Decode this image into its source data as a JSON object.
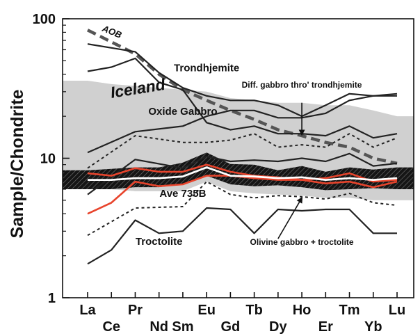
{
  "chart_data": {
    "type": "line",
    "title": "",
    "xlabel": "",
    "ylabel": "Sample/Chondrite",
    "yscale": "log",
    "ylim": [
      1,
      100
    ],
    "yticks": [
      {
        "value": 1,
        "label": "1"
      },
      {
        "value": 10,
        "label": "10"
      },
      {
        "value": 100,
        "label": "100"
      }
    ],
    "categories": [
      "La",
      "Ce",
      "Pr",
      "Nd",
      "Sm",
      "Eu",
      "Gd",
      "Tb",
      "Dy",
      "Ho",
      "Er",
      "Tm",
      "Yb",
      "Lu"
    ],
    "category_rows": [
      "upper",
      "lower",
      "upper",
      "lower",
      "lower",
      "upper",
      "lower",
      "upper",
      "lower",
      "upper",
      "lower",
      "upper",
      "lower",
      "upper"
    ],
    "colors": {
      "dark": "#222222",
      "red": "#e8442c",
      "field": "#d0d0d0",
      "white_band": "#ffffff",
      "black_band": "#151515"
    },
    "fields": [
      {
        "name": "Iceland",
        "upper": [
          36,
          34,
          33,
          32,
          31,
          30,
          27,
          26,
          25,
          25,
          24,
          24,
          22,
          20
        ],
        "lower": [
          6.3,
          6.0,
          5.8,
          5.8,
          5.8,
          6.8,
          5.8,
          5.6,
          5.5,
          5.4,
          5.2,
          5.2,
          5.0,
          5.0
        ]
      },
      {
        "name": "",
        "upper": [
          8.2,
          8.4,
          8.6,
          8.6,
          9.3,
          11.0,
          9.1,
          9.0,
          8.2,
          8.8,
          8.0,
          8.6,
          8.3,
          8.6
        ],
        "lower": [
          6.0,
          6.0,
          6.2,
          6.2,
          6.5,
          7.5,
          6.5,
          6.3,
          6.4,
          6.2,
          5.9,
          6.0,
          6.1,
          6.0
        ]
      }
    ],
    "series": [
      {
        "name": "AOB",
        "style": "dashed",
        "color": "dark",
        "x": [
          "La",
          "Pr",
          "Nd",
          "Sm",
          "Eu",
          "Gd",
          "Tb",
          "Dy",
          "Ho",
          "Er",
          "Tm",
          "Yb",
          "Lu"
        ],
        "values": [
          83,
          56,
          40,
          31,
          26,
          22,
          19,
          16,
          14.5,
          13,
          12,
          10,
          9.2
        ]
      },
      {
        "name": "Trondhjemite",
        "style": "solid",
        "color": "dark",
        "x": [
          "La",
          "Pr",
          "Nd",
          "Sm",
          "Eu",
          "Gd",
          "Tb",
          "Dy",
          "Ho",
          "Er",
          "Tm",
          "Yb",
          "Lu"
        ],
        "values": [
          66,
          58,
          41,
          32,
          28,
          26,
          26,
          24,
          20,
          24,
          29,
          28,
          28
        ]
      },
      {
        "name": "",
        "style": "solid",
        "color": "dark",
        "x": [
          "La",
          "Ce",
          "Pr",
          "Nd",
          "Sm",
          "Eu",
          "Gd",
          "Tb",
          "Dy",
          "Ho",
          "Er",
          "Tm",
          "Yb",
          "Lu"
        ],
        "values": [
          42,
          45,
          52,
          35,
          31,
          18,
          16,
          17,
          15,
          15,
          14.5,
          17,
          14,
          15
        ]
      },
      {
        "name": "",
        "style": "solid",
        "color": "dark",
        "x": [
          "La",
          "Pr",
          "Sm",
          "Eu",
          "Gd",
          "Tb",
          "Dy",
          "Ho",
          "Er",
          "Tm",
          "Yb",
          "Lu"
        ],
        "values": [
          11,
          15.5,
          17,
          20,
          22,
          22,
          19.5,
          19.5,
          21,
          26,
          28,
          29
        ]
      },
      {
        "name": "",
        "style": "dotted",
        "color": "dark",
        "x": [
          "La",
          "Pr",
          "Sm",
          "Eu",
          "Gd",
          "Tb",
          "Dy",
          "Ho",
          "Er",
          "Tm",
          "Yb",
          "Lu"
        ],
        "values": [
          8.5,
          14.5,
          13,
          13,
          13.5,
          15,
          12,
          12.5,
          12,
          15,
          12,
          14
        ]
      },
      {
        "name": "",
        "style": "solid",
        "color": "dark",
        "x": [
          "La",
          "Pr",
          "Sm",
          "Eu",
          "Gd",
          "Tb",
          "Dy",
          "Ho",
          "Er",
          "Tm",
          "Yb",
          "Lu"
        ],
        "values": [
          5.5,
          9.8,
          8.5,
          10.3,
          9.5,
          9.7,
          9.5,
          10,
          9.5,
          10.8,
          8.8,
          9.2
        ]
      },
      {
        "name": "",
        "style": "solid",
        "color": "red",
        "x": [
          "La",
          "Ce",
          "Pr",
          "Nd",
          "Sm",
          "Eu",
          "Gd",
          "Tb",
          "Dy",
          "Ho",
          "Er",
          "Tm",
          "Yb",
          "Lu"
        ],
        "values": [
          7.8,
          7.5,
          8.5,
          8.0,
          8.0,
          9.0,
          8.0,
          7.5,
          7.3,
          7.0,
          7.2,
          7.8,
          6.8,
          7.0
        ]
      },
      {
        "name": "",
        "style": "solid",
        "color": "red",
        "x": [
          "La",
          "Ce",
          "Pr",
          "Nd",
          "Sm",
          "Eu",
          "Gd",
          "Tb",
          "Dy",
          "Ho",
          "Er",
          "Tm",
          "Yb",
          "Lu"
        ],
        "values": [
          4.0,
          4.8,
          6.8,
          6.3,
          6.5,
          7.5,
          7.5,
          7.2,
          7.0,
          7.0,
          6.6,
          6.8,
          6.2,
          6.8
        ]
      },
      {
        "name": "Ave 735B",
        "style": "solid",
        "color": "white_band",
        "x": [
          "La",
          "Ce",
          "Pr",
          "Nd",
          "Sm",
          "Eu",
          "Gd",
          "Tb",
          "Dy",
          "Ho",
          "Er",
          "Tm",
          "Yb",
          "Lu"
        ],
        "values": [
          7.0,
          7.0,
          7.2,
          7.2,
          7.4,
          8.6,
          7.5,
          7.4,
          7.2,
          7.3,
          7.0,
          7.2,
          7.0,
          7.2
        ]
      },
      {
        "name": "",
        "style": "dotted",
        "color": "dark",
        "x": [
          "La",
          "Pr",
          "Sm",
          "Eu",
          "Gd",
          "Tb",
          "Dy",
          "Ho",
          "Er",
          "Tm",
          "Yb",
          "Lu"
        ],
        "values": [
          2.8,
          4.4,
          4.5,
          6.8,
          5.5,
          5.2,
          5.4,
          5.3,
          5.1,
          5.6,
          4.8,
          4.6
        ]
      },
      {
        "name": "Troctolite",
        "style": "solid",
        "color": "dark",
        "x": [
          "La",
          "Ce",
          "Pr",
          "Nd",
          "Sm",
          "Eu",
          "Gd",
          "Tb",
          "Dy",
          "Ho",
          "Er",
          "Tm",
          "Yb",
          "Lu"
        ],
        "values": [
          1.75,
          2.2,
          3.6,
          2.9,
          3.0,
          4.4,
          4.3,
          2.9,
          4.3,
          4.2,
          4.3,
          4.3,
          2.9,
          2.9
        ]
      }
    ],
    "annotations": [
      {
        "text": "AOB",
        "at": [
          "La",
          82
        ],
        "rotate": 22,
        "size": 13,
        "style": "italic-bold"
      },
      {
        "text": "Trondhjemite",
        "at": [
          "Eu",
          42
        ],
        "size": 15,
        "anchor": "middle"
      },
      {
        "text": "Diff. gabbro thro' trondhjemite",
        "at": [
          "Ho",
          32
        ],
        "size": 12,
        "anchor": "middle"
      },
      {
        "text": "Iceland",
        "at": [
          "Ce",
          27
        ],
        "rotate": -9,
        "size": 23,
        "style": "italic-bold",
        "fill": "#ffffff"
      },
      {
        "text": "Oxide Gabbro",
        "at": [
          "Sm",
          20.5
        ],
        "size": 15,
        "anchor": "middle"
      },
      {
        "text": "Ave 735B",
        "at": [
          "Sm",
          5.3
        ],
        "size": 15,
        "anchor": "middle"
      },
      {
        "text": "Troctolite",
        "at": [
          "Nd",
          2.4
        ],
        "size": 15,
        "anchor": "middle"
      },
      {
        "text": "Olivine gabbro + troctolite",
        "at": [
          "Ho",
          2.4
        ],
        "size": 12,
        "anchor": "middle"
      }
    ],
    "arrows": [
      {
        "from": [
          "Ho",
          25
        ],
        "to": [
          "Ho",
          14.8
        ]
      },
      {
        "from": [
          "Dy",
          2.65
        ],
        "to": [
          "Ho",
          5.2
        ]
      }
    ],
    "grid": false,
    "legend": "none"
  }
}
